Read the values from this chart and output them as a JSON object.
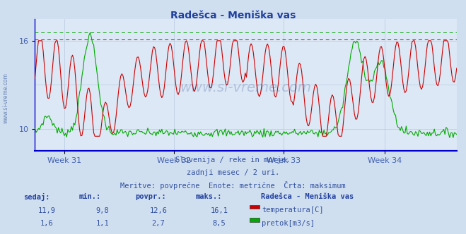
{
  "title": "Radešca - Meniška vas",
  "bg_color": "#d0dff0",
  "plot_bg_color": "#dce8f5",
  "grid_color": "#b8c8dc",
  "title_color": "#2040a0",
  "axis_label_color": "#4060b0",
  "text_color": "#3050a0",
  "temp_color": "#cc0000",
  "flow_color": "#00aa00",
  "bottom_line_color": "#0000cc",
  "x_ticks": [
    "Week 31",
    "Week 32",
    "Week 33",
    "Week 34"
  ],
  "ylim": [
    8.5,
    17.5
  ],
  "yticks": [
    10,
    16
  ],
  "temp_max": 16.1,
  "flow_max": 8.5,
  "flow_scale_min": 0.0,
  "flow_scale_max": 9.5,
  "temp_scale_min": 8.5,
  "temp_scale_max": 17.5,
  "watermark": "www.si-vreme.com",
  "subtitle1": "Slovenija / reke in morje.",
  "subtitle2": "zadnji mesec / 2 uri.",
  "subtitle3": "Meritve: povprečne  Enote: metrične  Črta: maksimum",
  "legend_title": "Radešca - Meniška vas",
  "legend_items": [
    {
      "label": "temperatura[C]",
      "color": "#cc0000"
    },
    {
      "label": "pretok[m3/s]",
      "color": "#00aa00"
    }
  ],
  "stats_headers": [
    "sedaj:",
    "min.:",
    "povpr.:",
    "maks.:"
  ],
  "stats_temp": [
    "11,9",
    "9,8",
    "12,6",
    "16,1"
  ],
  "stats_flow": [
    "1,6",
    "1,1",
    "2,7",
    "8,5"
  ],
  "n_points": 360
}
